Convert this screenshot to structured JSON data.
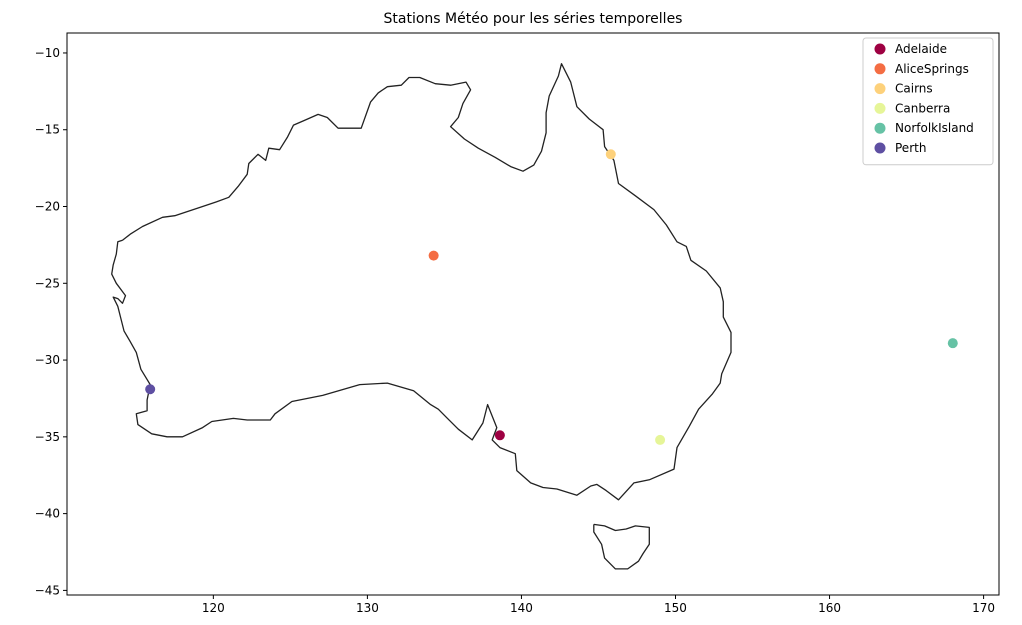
{
  "chart_data": {
    "type": "scatter",
    "title": "Stations Météo pour les séries temporelles",
    "xlabel": "",
    "ylabel": "",
    "xlim": [
      110.5,
      171
    ],
    "ylim": [
      -45.3,
      -8.7
    ],
    "x_ticks": [
      120,
      130,
      140,
      150,
      160,
      170
    ],
    "y_ticks": [
      -10,
      -15,
      -20,
      -25,
      -30,
      -35,
      -40,
      -45
    ],
    "x_tick_labels": [
      "120",
      "130",
      "140",
      "150",
      "160",
      "170"
    ],
    "y_tick_labels": [
      "−10",
      "−15",
      "−20",
      "−25",
      "−30",
      "−35",
      "−40",
      "−45"
    ],
    "grid": false,
    "legend_position": "top-right",
    "series": [
      {
        "name": "Adelaide",
        "x": 138.6,
        "y": -34.9,
        "color": "#9e0142"
      },
      {
        "name": "AliceSprings",
        "x": 134.3,
        "y": -23.2,
        "color": "#f46d43"
      },
      {
        "name": "Cairns",
        "x": 145.8,
        "y": -16.6,
        "color": "#fdd17b"
      },
      {
        "name": "Canberra",
        "x": 149.0,
        "y": -35.2,
        "color": "#e6f598"
      },
      {
        "name": "NorfolkIsland",
        "x": 168.0,
        "y": -28.9,
        "color": "#66c2a5"
      },
      {
        "name": "Perth",
        "x": 115.9,
        "y": -31.9,
        "color": "#5e4fa2"
      }
    ]
  },
  "map_outline": {
    "mainland": [
      [
        114.1,
        -22.2
      ],
      [
        114.6,
        -21.8
      ],
      [
        115.4,
        -21.3
      ],
      [
        116.7,
        -20.7
      ],
      [
        117.5,
        -20.6
      ],
      [
        118.4,
        -20.3
      ],
      [
        119.3,
        -20.0
      ],
      [
        120.2,
        -19.7
      ],
      [
        121.0,
        -19.4
      ],
      [
        121.6,
        -18.7
      ],
      [
        122.2,
        -17.9
      ],
      [
        122.3,
        -17.2
      ],
      [
        122.9,
        -16.6
      ],
      [
        123.4,
        -17.0
      ],
      [
        123.6,
        -16.2
      ],
      [
        124.3,
        -16.3
      ],
      [
        124.8,
        -15.5
      ],
      [
        125.2,
        -14.7
      ],
      [
        125.9,
        -14.4
      ],
      [
        126.8,
        -14.0
      ],
      [
        127.4,
        -14.2
      ],
      [
        128.1,
        -14.9
      ],
      [
        128.9,
        -14.9
      ],
      [
        129.6,
        -14.9
      ],
      [
        130.2,
        -13.2
      ],
      [
        130.7,
        -12.6
      ],
      [
        131.3,
        -12.2
      ],
      [
        132.2,
        -12.1
      ],
      [
        132.7,
        -11.6
      ],
      [
        133.4,
        -11.6
      ],
      [
        134.4,
        -12.0
      ],
      [
        135.4,
        -12.1
      ],
      [
        136.4,
        -11.9
      ],
      [
        136.7,
        -12.4
      ],
      [
        136.2,
        -13.3
      ],
      [
        135.9,
        -14.2
      ],
      [
        135.4,
        -14.8
      ],
      [
        136.3,
        -15.6
      ],
      [
        137.2,
        -16.2
      ],
      [
        138.3,
        -16.8
      ],
      [
        139.3,
        -17.4
      ],
      [
        140.1,
        -17.7
      ],
      [
        140.8,
        -17.3
      ],
      [
        141.3,
        -16.4
      ],
      [
        141.6,
        -15.2
      ],
      [
        141.6,
        -13.9
      ],
      [
        141.8,
        -12.8
      ],
      [
        142.4,
        -11.5
      ],
      [
        142.6,
        -10.7
      ],
      [
        143.2,
        -11.9
      ],
      [
        143.6,
        -13.5
      ],
      [
        144.4,
        -14.3
      ],
      [
        145.3,
        -15.0
      ],
      [
        145.4,
        -16.1
      ],
      [
        146.0,
        -17.0
      ],
      [
        146.3,
        -18.5
      ],
      [
        147.4,
        -19.3
      ],
      [
        148.6,
        -20.2
      ],
      [
        149.4,
        -21.2
      ],
      [
        150.1,
        -22.3
      ],
      [
        150.7,
        -22.6
      ],
      [
        151.0,
        -23.5
      ],
      [
        152.0,
        -24.2
      ],
      [
        152.9,
        -25.3
      ],
      [
        153.1,
        -26.2
      ],
      [
        153.1,
        -27.2
      ],
      [
        153.6,
        -28.2
      ],
      [
        153.6,
        -29.5
      ],
      [
        153.0,
        -30.9
      ],
      [
        152.9,
        -31.5
      ],
      [
        152.4,
        -32.2
      ],
      [
        151.5,
        -33.2
      ],
      [
        150.9,
        -34.3
      ],
      [
        150.1,
        -35.7
      ],
      [
        149.9,
        -37.1
      ],
      [
        148.3,
        -37.8
      ],
      [
        147.3,
        -38.0
      ],
      [
        146.3,
        -39.1
      ],
      [
        145.5,
        -38.5
      ],
      [
        144.9,
        -38.1
      ],
      [
        144.5,
        -38.2
      ],
      [
        143.6,
        -38.8
      ],
      [
        142.3,
        -38.4
      ],
      [
        141.4,
        -38.3
      ],
      [
        140.6,
        -38.0
      ],
      [
        139.7,
        -37.2
      ],
      [
        139.6,
        -36.1
      ],
      [
        138.6,
        -35.7
      ],
      [
        138.1,
        -35.2
      ],
      [
        138.4,
        -34.4
      ],
      [
        137.8,
        -32.9
      ],
      [
        137.5,
        -34.1
      ],
      [
        136.8,
        -35.2
      ],
      [
        135.9,
        -34.5
      ],
      [
        135.2,
        -33.8
      ],
      [
        134.6,
        -33.2
      ],
      [
        134.1,
        -32.9
      ],
      [
        133.0,
        -32.0
      ],
      [
        131.3,
        -31.5
      ],
      [
        129.5,
        -31.6
      ],
      [
        127.1,
        -32.3
      ],
      [
        125.1,
        -32.7
      ],
      [
        124.0,
        -33.5
      ],
      [
        123.7,
        -33.9
      ],
      [
        122.2,
        -33.9
      ],
      [
        121.3,
        -33.8
      ],
      [
        119.9,
        -34.0
      ],
      [
        119.3,
        -34.4
      ],
      [
        118.0,
        -35.0
      ],
      [
        117.0,
        -35.0
      ],
      [
        116.0,
        -34.8
      ],
      [
        115.1,
        -34.2
      ],
      [
        115.0,
        -33.5
      ],
      [
        115.7,
        -33.3
      ],
      [
        115.7,
        -32.6
      ],
      [
        115.9,
        -31.6
      ],
      [
        115.3,
        -30.6
      ],
      [
        115.0,
        -29.5
      ],
      [
        114.6,
        -28.8
      ],
      [
        114.2,
        -28.1
      ],
      [
        114.0,
        -27.3
      ],
      [
        113.8,
        -26.5
      ],
      [
        113.5,
        -25.9
      ],
      [
        113.8,
        -26.0
      ],
      [
        114.1,
        -26.3
      ],
      [
        114.3,
        -25.8
      ],
      [
        113.7,
        -25.0
      ],
      [
        113.4,
        -24.4
      ],
      [
        113.5,
        -23.8
      ],
      [
        113.7,
        -23.1
      ],
      [
        113.8,
        -22.3
      ],
      [
        114.1,
        -22.2
      ]
    ],
    "tasmania": [
      [
        144.7,
        -40.7
      ],
      [
        145.4,
        -40.8
      ],
      [
        146.1,
        -41.1
      ],
      [
        146.8,
        -41.0
      ],
      [
        147.4,
        -40.8
      ],
      [
        148.3,
        -40.9
      ],
      [
        148.3,
        -42.0
      ],
      [
        147.9,
        -42.6
      ],
      [
        147.6,
        -43.1
      ],
      [
        146.9,
        -43.6
      ],
      [
        146.1,
        -43.6
      ],
      [
        145.4,
        -42.9
      ],
      [
        145.2,
        -42.0
      ],
      [
        144.7,
        -41.2
      ],
      [
        144.7,
        -40.7
      ]
    ]
  }
}
